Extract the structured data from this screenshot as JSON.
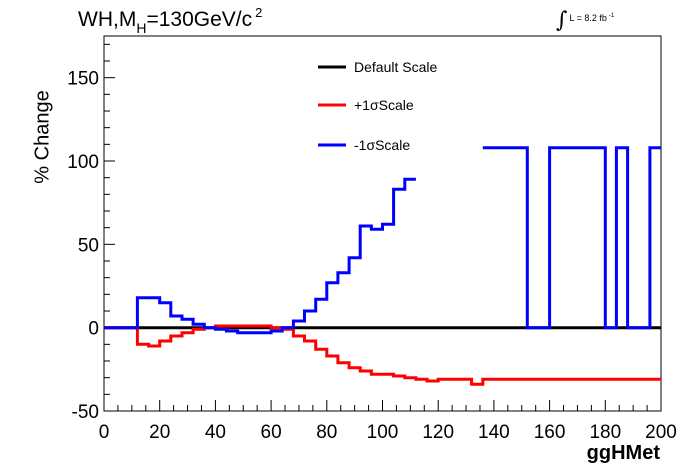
{
  "header": {
    "title_prefix": "WH,M",
    "title_sub": "H",
    "title_rest": "=130GeV/c",
    "title_sup": "2",
    "lumi_label": "L = 8.2 fb",
    "lumi_sup": "-1"
  },
  "chart_data": {
    "type": "line",
    "xlabel": "ggHMet",
    "ylabel": "% Change",
    "xlim": [
      0,
      200
    ],
    "ylim": [
      -50,
      175
    ],
    "xticks": [
      0,
      20,
      40,
      60,
      80,
      100,
      120,
      140,
      160,
      180,
      200
    ],
    "yticks": [
      -50,
      0,
      50,
      100,
      150
    ],
    "legend_position": "top-center",
    "bin_edges": [
      0,
      4,
      8,
      12,
      16,
      20,
      24,
      28,
      32,
      36,
      40,
      44,
      48,
      52,
      56,
      60,
      64,
      68,
      72,
      76,
      80,
      84,
      88,
      92,
      96,
      100,
      104,
      108,
      112,
      116,
      120,
      124,
      128,
      132,
      136,
      140,
      144,
      148,
      152,
      156,
      160,
      164,
      168,
      172,
      176,
      180,
      184,
      188,
      192,
      196,
      200
    ],
    "series": [
      {
        "name": "Default Scale",
        "color": "#000000",
        "values": [
          0,
          0,
          0,
          0,
          0,
          0,
          0,
          0,
          0,
          0,
          0,
          0,
          0,
          0,
          0,
          0,
          0,
          0,
          0,
          0,
          0,
          0,
          0,
          0,
          0,
          0,
          0,
          0,
          0,
          0,
          0,
          0,
          0,
          0,
          0,
          0,
          0,
          0,
          0,
          0,
          0,
          0,
          0,
          0,
          0,
          0,
          0,
          0,
          0,
          0
        ]
      },
      {
        "name": "+1σScale",
        "color": "#ff0000",
        "values": [
          0,
          0,
          0,
          -10,
          -11,
          -8,
          -5,
          -3,
          -1,
          0,
          1,
          1,
          1,
          1,
          1,
          0,
          -1,
          -5,
          -8,
          -13,
          -17,
          -21,
          -24,
          -26,
          -28,
          -28,
          -29,
          -30,
          -31,
          -32,
          -31,
          -31,
          -31,
          -34,
          -31,
          -31,
          -31,
          -31,
          -31,
          -31,
          -31,
          -31,
          -31,
          -31,
          -31,
          -31,
          -31,
          -31,
          -31,
          -31
        ]
      },
      {
        "name": "-1σScale",
        "color": "#0000ff",
        "values": [
          0,
          0,
          0,
          18,
          18,
          15,
          7,
          5,
          2,
          0,
          -1,
          -2,
          -3,
          -3,
          -3,
          -2,
          0,
          4,
          10,
          17,
          27,
          33,
          42,
          61,
          59,
          62,
          83,
          89,
          null,
          null,
          null,
          null,
          null,
          null,
          108,
          108,
          108,
          108,
          0,
          0,
          108,
          108,
          108,
          108,
          108,
          0,
          108,
          0,
          0,
          108
        ]
      }
    ]
  }
}
